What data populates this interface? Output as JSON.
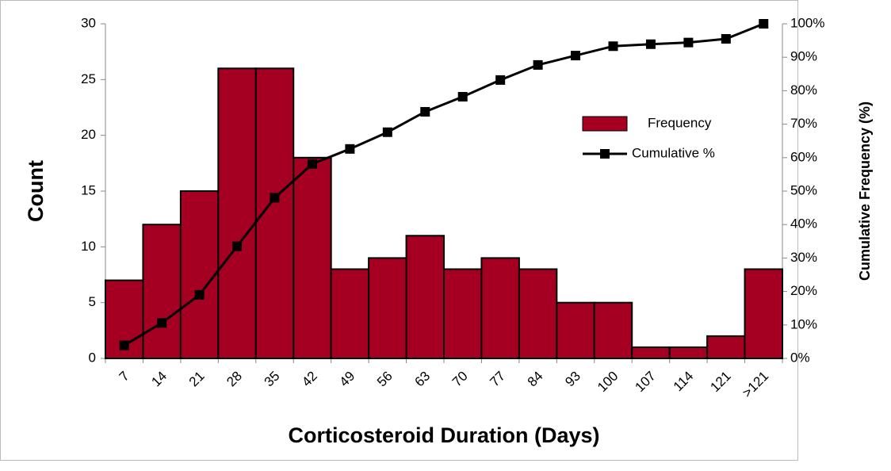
{
  "chart_data": {
    "type": "bar",
    "categories": [
      "7",
      "14",
      "21",
      "28",
      "35",
      "42",
      "49",
      "56",
      "63",
      "70",
      "77",
      "84",
      "93",
      "100",
      "107",
      "114",
      "121",
      ">121"
    ],
    "series": [
      {
        "name": "Frequency",
        "type": "bar",
        "color": "#a50021",
        "values": [
          7,
          12,
          15,
          26,
          26,
          18,
          8,
          9,
          11,
          8,
          9,
          8,
          5,
          5,
          1,
          1,
          2,
          8
        ]
      },
      {
        "name": "Cumulative %",
        "type": "line",
        "axis": "y2",
        "color": "#000000",
        "values": [
          3.9,
          10.6,
          19,
          33.5,
          48,
          58.1,
          62.6,
          67.6,
          73.7,
          78.2,
          83.2,
          87.7,
          90.5,
          93.3,
          93.9,
          94.4,
          95.5,
          100
        ]
      }
    ],
    "x_label": "Corticosteroid Duration (Days)",
    "y_label": "Count",
    "y2_label": "Cumulative Frequency (%)",
    "ylim": [
      0,
      30
    ],
    "yticks": [
      0,
      5,
      10,
      15,
      20,
      25,
      30
    ],
    "y2lim": [
      0,
      100
    ],
    "y2ticks": [
      {
        "value": 0,
        "label": "0%"
      },
      {
        "value": 10,
        "label": "10%"
      },
      {
        "value": 20,
        "label": "20%"
      },
      {
        "value": 30,
        "label": "30%"
      },
      {
        "value": 40,
        "label": "40%"
      },
      {
        "value": 50,
        "label": "50%"
      },
      {
        "value": 60,
        "label": "60%"
      },
      {
        "value": 70,
        "label": "70%"
      },
      {
        "value": 80,
        "label": "80%"
      },
      {
        "value": 90,
        "label": "90%"
      },
      {
        "value": 100,
        "label": "100%"
      }
    ],
    "legend": "right"
  }
}
